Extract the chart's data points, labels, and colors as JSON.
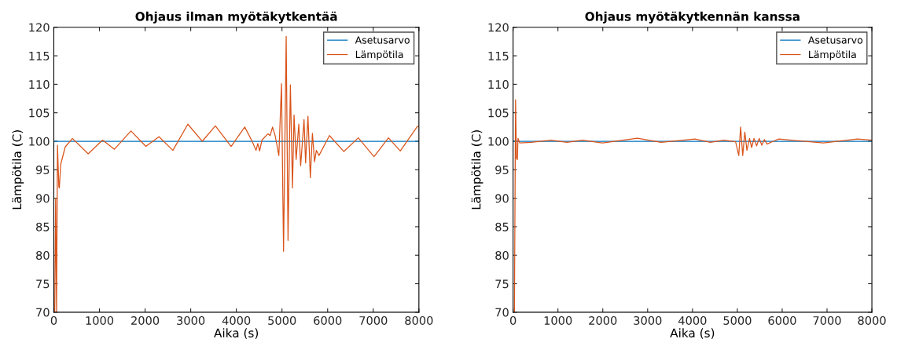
{
  "chart_data": [
    {
      "type": "line",
      "title": "Ohjaus ilman myötäkytkentää",
      "xlabel": "Aika (s)",
      "ylabel": "Lämpötila (C)",
      "xlim": [
        0,
        8000
      ],
      "ylim": [
        70,
        120
      ],
      "xticks": [
        0,
        1000,
        2000,
        3000,
        4000,
        5000,
        6000,
        7000,
        8000
      ],
      "yticks": [
        70,
        75,
        80,
        85,
        90,
        95,
        100,
        105,
        110,
        115,
        120
      ],
      "legend": "top right",
      "grid": false,
      "series": [
        {
          "name": "Asetusarvo",
          "color": "#0072bd",
          "x": [
            0,
            8000
          ],
          "values": [
            100,
            100
          ]
        },
        {
          "name": "Lämpötila",
          "color": "#d95319",
          "x": [
            0,
            20,
            40,
            60,
            80,
            110,
            121,
            150,
            250,
            408,
            753,
            1069,
            1328,
            1690,
            2017,
            2305,
            2609,
            2937,
            3253,
            3540,
            3885,
            4184,
            4345,
            4431,
            4470,
            4510,
            4560,
            4690,
            4740,
            4793,
            4850,
            4931,
            4989,
            5034,
            5092,
            5132,
            5184,
            5230,
            5264,
            5310,
            5368,
            5409,
            5483,
            5517,
            5569,
            5621,
            5667,
            5713,
            5753,
            5810,
            6040,
            6356,
            6672,
            7017,
            7333,
            7592,
            7966,
            8000
          ],
          "values": [
            70,
            70,
            90,
            70,
            99.3,
            92,
            91.8,
            95.9,
            99,
            100.5,
            97.8,
            100.2,
            98.6,
            101.8,
            99.1,
            100.8,
            98.4,
            103,
            100,
            102.7,
            99.1,
            102.5,
            100,
            98.4,
            99.6,
            98.3,
            100.2,
            101.3,
            101,
            102.5,
            101,
            97.5,
            110.1,
            80.7,
            118.4,
            82.6,
            109.9,
            91.8,
            104.6,
            96.8,
            103,
            95.7,
            103.8,
            96.2,
            104.4,
            93.6,
            101.4,
            96.4,
            98.4,
            97.5,
            101,
            98.2,
            100.6,
            97.3,
            100.6,
            98.3,
            102.6,
            102.6
          ]
        }
      ]
    },
    {
      "type": "line",
      "title": "Ohjaus myötäkytkennän kanssa",
      "xlabel": "Aika (s)",
      "ylabel": "Lämpötila (C)",
      "xlim": [
        0,
        8000
      ],
      "ylim": [
        70,
        120
      ],
      "xticks": [
        0,
        1000,
        2000,
        3000,
        4000,
        5000,
        6000,
        7000,
        8000
      ],
      "yticks": [
        70,
        75,
        80,
        85,
        90,
        95,
        100,
        105,
        110,
        115,
        120
      ],
      "legend": "top right",
      "grid": false,
      "series": [
        {
          "name": "Asetusarvo",
          "color": "#0072bd",
          "x": [
            0,
            8000
          ],
          "values": [
            100,
            100
          ]
        },
        {
          "name": "Lämpötila",
          "color": "#d95319",
          "x": [
            0,
            30,
            55,
            75,
            95,
            110,
            150,
            400,
            846,
            1200,
            1547,
            2000,
            2772,
            3300,
            4055,
            4400,
            4697,
            4961,
            5032,
            5073,
            5120,
            5167,
            5214,
            5272,
            5319,
            5371,
            5430,
            5488,
            5546,
            5604,
            5663,
            5800,
            5925,
            6918,
            7677,
            8000
          ],
          "values": [
            70,
            70,
            107.3,
            97,
            96.8,
            100.5,
            99.7,
            99.8,
            100.2,
            99.8,
            100.2,
            99.7,
            100.55,
            99.8,
            100.4,
            99.8,
            100.2,
            99.9,
            97.5,
            102.5,
            97.5,
            101.6,
            98.4,
            100.5,
            98.9,
            100.5,
            99.2,
            100.5,
            99.3,
            100.3,
            99.5,
            100,
            100.4,
            99.7,
            100.4,
            100.2
          ]
        }
      ]
    }
  ]
}
